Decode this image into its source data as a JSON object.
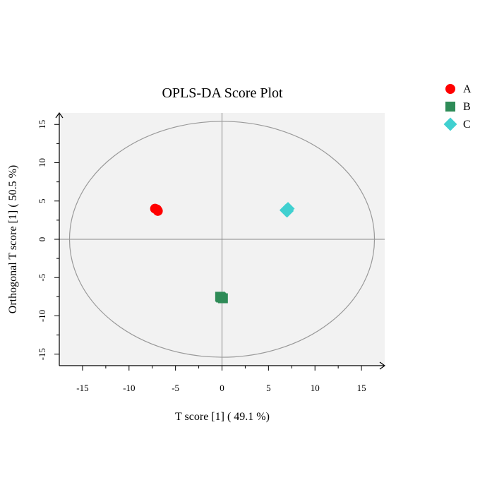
{
  "chart_data": {
    "type": "scatter",
    "title": "OPLS-DA Score Plot",
    "xlabel": "T score [1] ( 49.1 %)",
    "ylabel": "Orthogonal T score [1] ( 50.5 %)",
    "xlim": [
      -17.5,
      17.5
    ],
    "ylim": [
      -16.5,
      16.5
    ],
    "x_ticks": [
      -15,
      -10,
      -5,
      0,
      5,
      10,
      15
    ],
    "y_ticks": [
      -15,
      -10,
      -5,
      0,
      5,
      10,
      15
    ],
    "ellipse": {
      "cx": 0,
      "cy": 0,
      "rx": 16.4,
      "ry": 15.4
    },
    "grid": false,
    "legend_position": "top-right outside",
    "series": [
      {
        "name": "A",
        "marker": "circle",
        "color": "#ff0000",
        "points": [
          {
            "x": -7.2,
            "y": 4.0
          },
          {
            "x": -6.9,
            "y": 3.7
          },
          {
            "x": -7.0,
            "y": 3.9
          }
        ]
      },
      {
        "name": "B",
        "marker": "square",
        "color": "#2e8b57",
        "points": [
          {
            "x": -0.2,
            "y": -7.5
          },
          {
            "x": 0.1,
            "y": -7.7
          },
          {
            "x": -0.1,
            "y": -7.6
          }
        ]
      },
      {
        "name": "C",
        "marker": "diamond",
        "color": "#40d0d0",
        "points": [
          {
            "x": 6.9,
            "y": 3.8
          },
          {
            "x": 7.1,
            "y": 4.0
          },
          {
            "x": 7.0,
            "y": 3.7
          }
        ]
      }
    ]
  },
  "colors": {
    "plot_background": "#f2f2f2",
    "ellipse": "#999999",
    "axis_lines": "#888888"
  }
}
